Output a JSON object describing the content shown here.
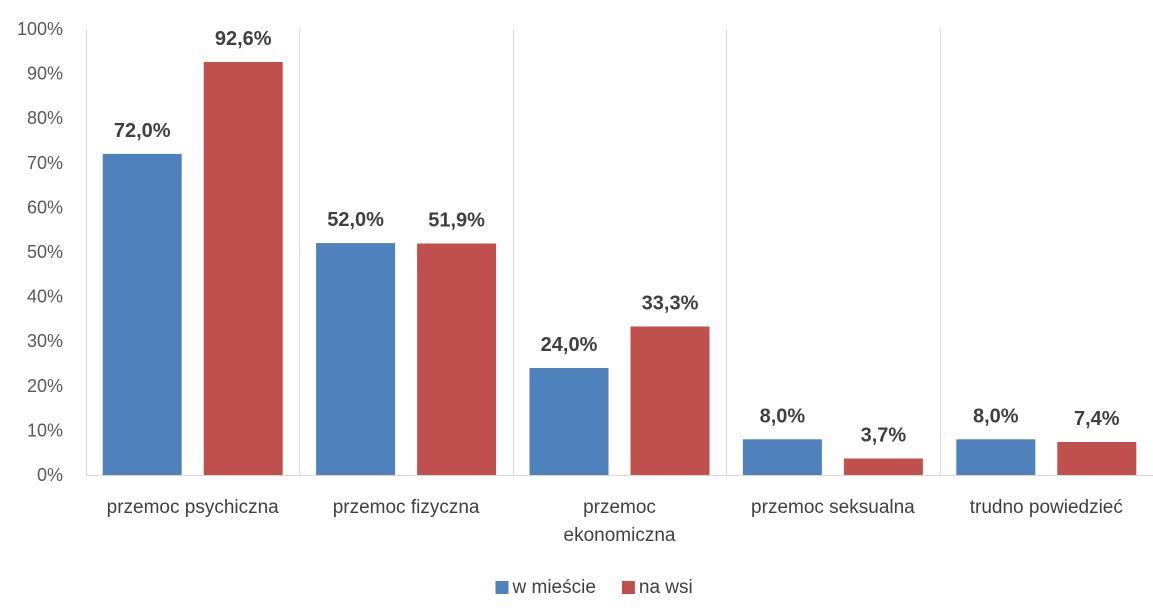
{
  "chart_data": {
    "type": "bar",
    "categories": [
      [
        "przemoc psychiczna"
      ],
      [
        "przemoc fizyczna"
      ],
      [
        "przemoc",
        "ekonomiczna"
      ],
      [
        "przemoc seksualna"
      ],
      [
        "trudno powiedzieć"
      ]
    ],
    "series": [
      {
        "name": "w mieście",
        "color": "#4f81bd",
        "values": [
          72.0,
          52.0,
          24.0,
          8.0,
          8.0
        ],
        "labels": [
          "72,0%",
          "52,0%",
          "24,0%",
          "8,0%",
          "8,0%"
        ]
      },
      {
        "name": "na wsi",
        "color": "#c0504d",
        "values": [
          92.6,
          51.9,
          33.3,
          3.7,
          7.4
        ],
        "labels": [
          "92,6%",
          "51,9%",
          "33,3%",
          "3,7%",
          "7,4%"
        ]
      }
    ],
    "y_ticks": [
      0,
      10,
      20,
      30,
      40,
      50,
      60,
      70,
      80,
      90,
      100
    ],
    "y_tick_labels": [
      "0%",
      "10%",
      "20%",
      "30%",
      "40%",
      "50%",
      "60%",
      "70%",
      "80%",
      "90%",
      "100%"
    ],
    "ylim": [
      0,
      100
    ],
    "grid": "vertical",
    "legend": "bottom-center"
  }
}
